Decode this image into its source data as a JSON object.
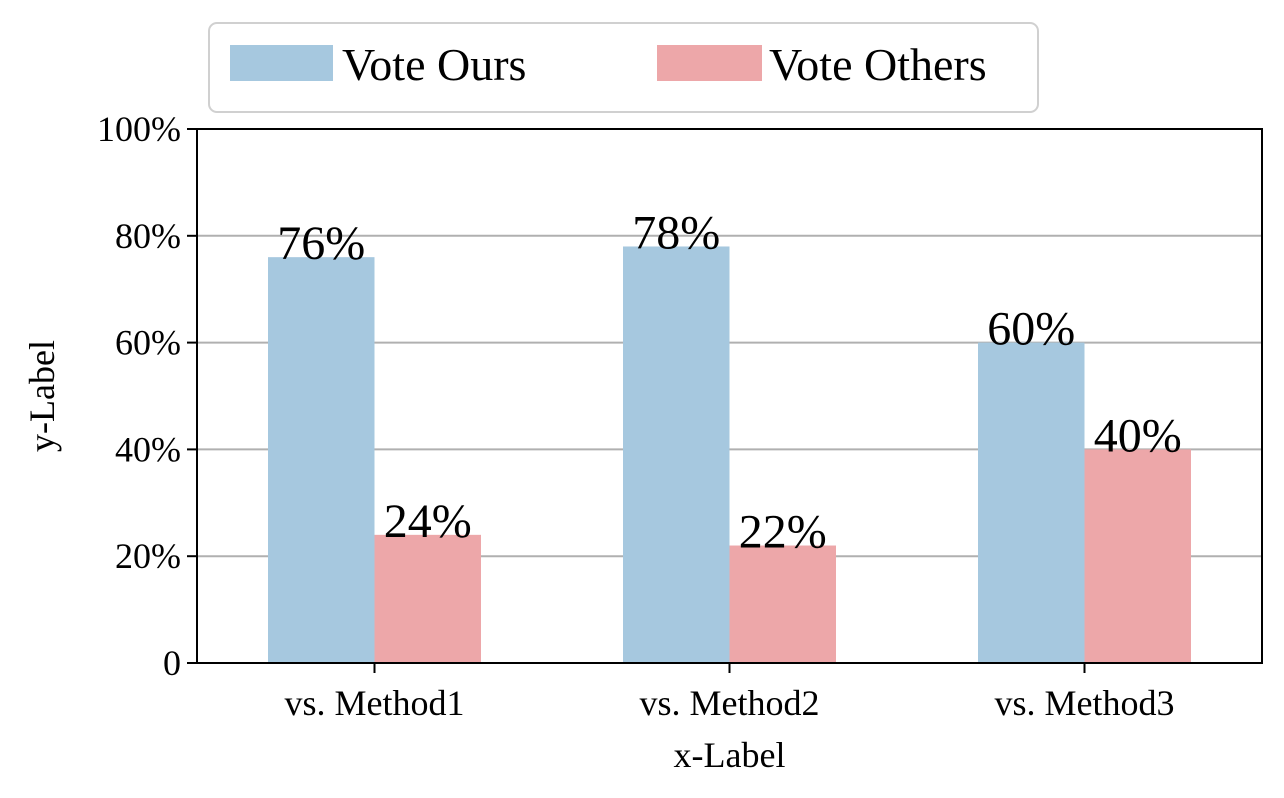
{
  "chart_data": {
    "type": "bar",
    "categories": [
      "vs. Method1",
      "vs. Method2",
      "vs. Method3"
    ],
    "series": [
      {
        "name": "Vote Ours",
        "values": [
          76,
          78,
          60
        ],
        "labels": [
          "76%",
          "78%",
          "60%"
        ],
        "color": "#a6c8df"
      },
      {
        "name": "Vote Others",
        "values": [
          24,
          22,
          40
        ],
        "labels": [
          "24%",
          "22%",
          "40%"
        ],
        "color": "#eda7a9"
      }
    ],
    "xlabel": "x-Label",
    "ylabel": "y-Label",
    "ylim": [
      0,
      100
    ],
    "yticks": [
      0,
      20,
      40,
      60,
      80,
      100
    ],
    "ytick_labels": [
      "0",
      "20%",
      "40%",
      "60%",
      "80%",
      "100%"
    ],
    "grid": "y-major",
    "legend_position": "top-center above plot",
    "grid_color": "#b0b0b0"
  }
}
